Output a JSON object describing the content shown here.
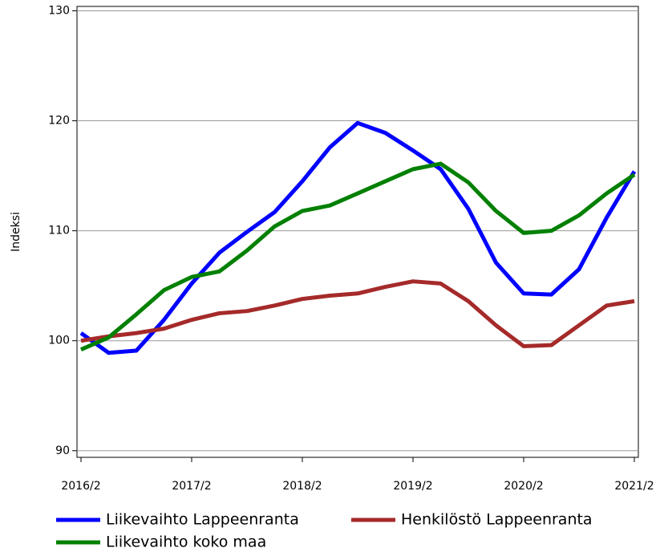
{
  "chart_data": {
    "type": "line",
    "y_label": "Indeksi",
    "categories": [
      "2016/2",
      null,
      null,
      null,
      "2017/2",
      null,
      null,
      null,
      "2018/2",
      null,
      null,
      null,
      "2019/2",
      null,
      null,
      null,
      "2020/2",
      null,
      null,
      null,
      "2021/2"
    ],
    "series": [
      {
        "name": "Liikevaihto Lappeenranta",
        "color": "#0000ff",
        "values": [
          100.7,
          98.9,
          99.1,
          101.9,
          105.2,
          108.0,
          109.9,
          111.7,
          114.5,
          117.6,
          119.8,
          118.9,
          117.3,
          115.6,
          112.0,
          107.1,
          104.3,
          104.2,
          106.5,
          111.2,
          115.4
        ]
      },
      {
        "name": "Henkilöstö Lappeenranta",
        "color": "#a52a2a",
        "values": [
          100.0,
          100.4,
          100.7,
          101.1,
          101.9,
          102.5,
          102.7,
          103.2,
          103.8,
          104.1,
          104.3,
          104.9,
          105.4,
          105.2,
          103.6,
          101.4,
          99.5,
          99.6,
          101.4,
          103.2,
          103.6
        ]
      },
      {
        "name": "Liikevaihto koko maa",
        "color": "#008000",
        "values": [
          99.2,
          100.3,
          102.4,
          104.6,
          105.8,
          106.3,
          108.2,
          110.4,
          111.8,
          112.3,
          113.4,
          114.5,
          115.6,
          116.1,
          114.4,
          111.8,
          109.8,
          110.0,
          111.4,
          113.4,
          115.1
        ]
      }
    ],
    "ylim": [
      89.4,
      130.4
    ],
    "yticks": [
      90,
      100,
      110,
      120,
      130
    ],
    "grid": true
  }
}
